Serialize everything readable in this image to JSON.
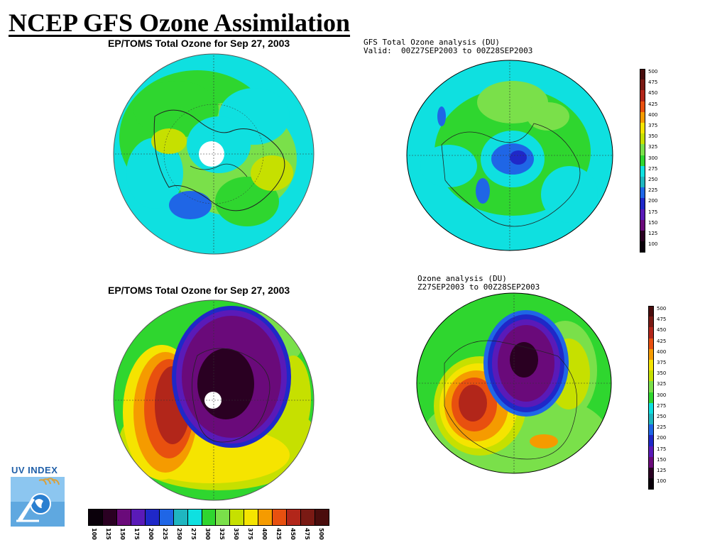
{
  "slide": {
    "title": "NCEP GFS Ozone Assimilation"
  },
  "panels": {
    "toms_north": {
      "caption": "EP/TOMS Total Ozone for Sep 27, 2003"
    },
    "gfs_north": {
      "caption_line1": "GFS Total Ozone analysis (DU)",
      "caption_line2": "Valid:  00Z27SEP2003 to 00Z28SEP2003"
    },
    "toms_south": {
      "caption": "EP/TOMS Total Ozone for Sep 27, 2003"
    },
    "gfs_south": {
      "caption_line1": "Ozone analysis (DU)",
      "caption_line2": "Z27SEP2003 to 00Z28SEP2003"
    }
  },
  "colorbar": {
    "levels": [
      "500",
      "475",
      "450",
      "425",
      "400",
      "375",
      "350",
      "325",
      "300",
      "275",
      "250",
      "225",
      "200",
      "175",
      "150",
      "125",
      "100"
    ],
    "colors": [
      "#4a0d0d",
      "#7a1a14",
      "#b2261a",
      "#e8500f",
      "#f59b00",
      "#f5e400",
      "#c6e000",
      "#7ae04a",
      "#2fd62f",
      "#0fe0e0",
      "#1fb6c0",
      "#1f66e6",
      "#1f28c8",
      "#5a1ab8",
      "#6a0a7a",
      "#2a0022",
      "#0a000a"
    ]
  },
  "bottom_colorbar": {
    "labels": [
      "100",
      "125",
      "150",
      "175",
      "200",
      "225",
      "250",
      "275",
      "300",
      "325",
      "350",
      "375",
      "400",
      "425",
      "450",
      "475",
      "500"
    ],
    "colors": [
      "#0a000a",
      "#2a0022",
      "#6a0a7a",
      "#5a1ab8",
      "#1f28c8",
      "#1f66e6",
      "#1fb6c0",
      "#0fe0e0",
      "#2fd62f",
      "#7ae04a",
      "#c6e000",
      "#f5e400",
      "#f59b00",
      "#e8500f",
      "#b2261a",
      "#7a1a14",
      "#4a0d0d"
    ]
  },
  "logo": {
    "label": "UV INDEX",
    "icon": "uv-index-logo-icon"
  }
}
